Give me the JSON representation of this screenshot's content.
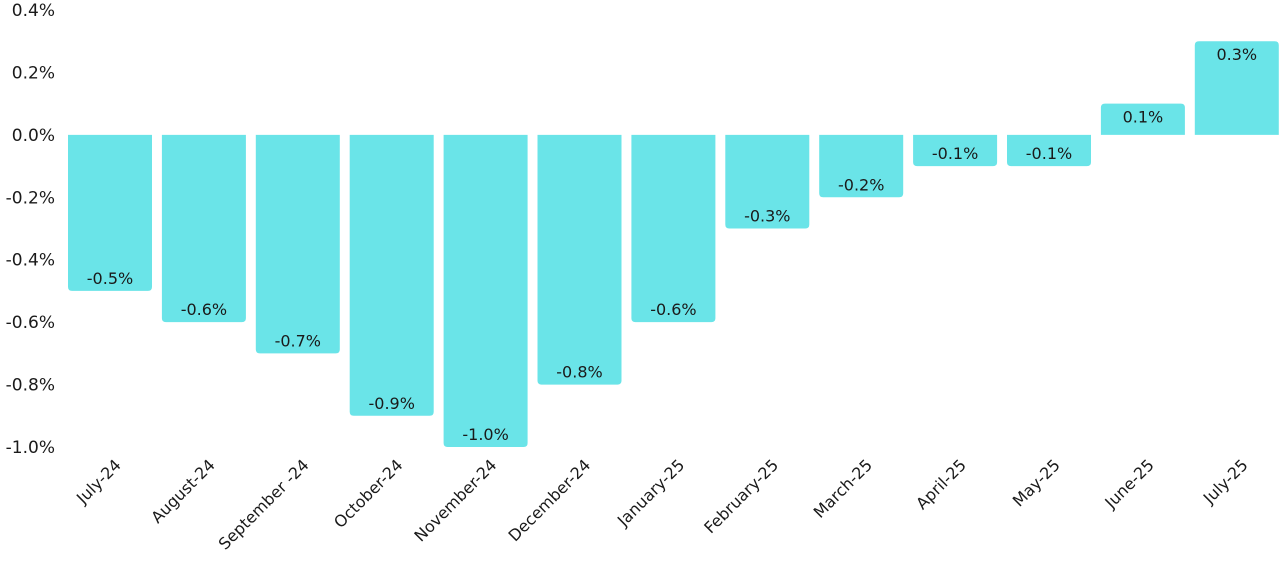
{
  "chart_data": {
    "type": "bar",
    "title": "",
    "xlabel": "",
    "ylabel": "",
    "categories": [
      "July-24",
      "August-24",
      "September -24",
      "October-24",
      "November-24",
      "December-24",
      "January-25",
      "February-25",
      "March-25",
      "April-25",
      "May-25",
      "June-25",
      "July-25"
    ],
    "values": [
      -0.5,
      -0.6,
      -0.7,
      -0.9,
      -1.0,
      -0.8,
      -0.6,
      -0.3,
      -0.2,
      -0.1,
      -0.1,
      0.1,
      0.3
    ],
    "data_labels": [
      "-0.5%",
      "-0.6%",
      "-0.7%",
      "-0.9%",
      "-1.0%",
      "-0.8%",
      "-0.6%",
      "-0.3%",
      "-0.2%",
      "-0.1%",
      "-0.1%",
      "0.1%",
      "0.3%"
    ],
    "ylim": [
      -1.0,
      0.4
    ],
    "yticks": [
      "0.4%",
      "0.2%",
      "0.0%",
      "-0.2%",
      "-0.4%",
      "-0.6%",
      "-0.8%",
      "-1.0%"
    ],
    "ytick_values": [
      0.4,
      0.2,
      0.0,
      -0.2,
      -0.4,
      -0.6,
      -0.8,
      -1.0
    ],
    "grid": false,
    "legend": "none",
    "bar_color": "#6AE4E8"
  }
}
